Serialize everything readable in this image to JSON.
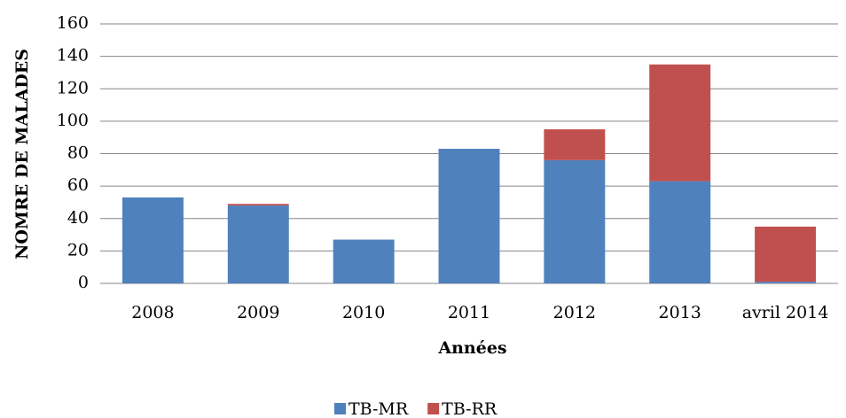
{
  "chart_data": {
    "type": "stacked_bar",
    "xlabel": "Années",
    "ylabel": "NOMRE DE MALADES",
    "categories": [
      "2008",
      "2009",
      "2010",
      "2011",
      "2012",
      "2013",
      "avril 2014"
    ],
    "series": [
      {
        "name": "TB-MR",
        "color": "#4f81bd",
        "values": [
          53,
          48,
          27,
          83,
          76,
          63,
          1
        ]
      },
      {
        "name": "TB-RR",
        "color": "#c0504d",
        "values": [
          0,
          1,
          0,
          0,
          19,
          72,
          34
        ]
      }
    ],
    "ylim": [
      0,
      160
    ],
    "yticks": [
      0,
      20,
      40,
      60,
      80,
      100,
      120,
      140,
      160
    ],
    "grid": true,
    "legend": "bottom"
  }
}
